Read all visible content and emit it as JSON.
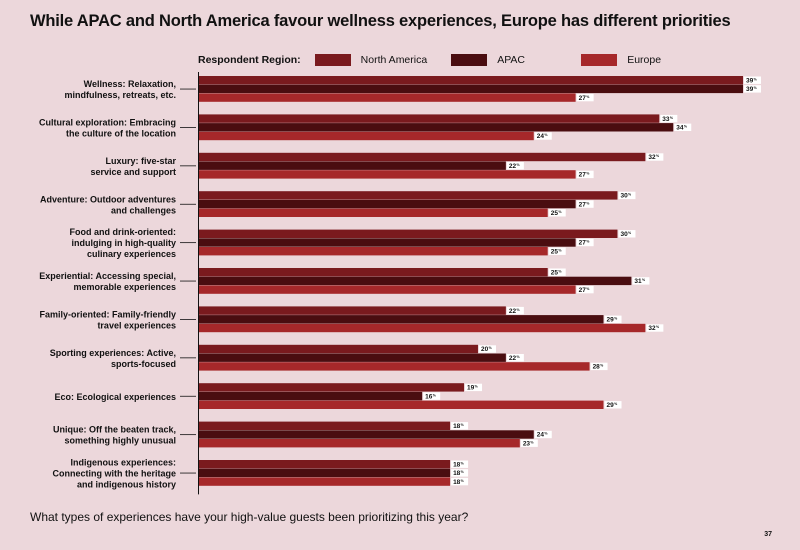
{
  "title": "While APAC and North America favour wellness experiences, Europe has different priorities",
  "legend": {
    "title": "Respondent Region:",
    "items": [
      {
        "name": "North America",
        "color": "#7a1a1e"
      },
      {
        "name": "APAC",
        "color": "#4a0d10"
      },
      {
        "name": "Europe",
        "color": "#a6282a"
      }
    ]
  },
  "question": "What types of experiences have your high-value guests been prioritizing this year?",
  "page_number": "37",
  "chart_data": {
    "type": "bar",
    "orientation": "horizontal",
    "categories": [
      [
        "Wellness: Relaxation,",
        "mindfulness, retreats, etc."
      ],
      [
        "Cultural exploration: Embracing",
        "the culture of the location"
      ],
      [
        "Luxury: five-star",
        "service and support"
      ],
      [
        "Adventure: Outdoor adventures",
        "and challenges"
      ],
      [
        "Food and drink-oriented:",
        "indulging in high-quality",
        "culinary experiences"
      ],
      [
        "Experiential: Accessing special,",
        "memorable experiences"
      ],
      [
        "Family-oriented: Family-friendly",
        "travel experiences"
      ],
      [
        "Sporting experiences: Active,",
        "sports-focused"
      ],
      [
        "Eco: Ecological experiences"
      ],
      [
        "Unique: Off the beaten track,",
        "something highly unusual"
      ],
      [
        "Indigenous experiences:",
        "Connecting with the heritage",
        "and indigenous history"
      ]
    ],
    "series": [
      {
        "name": "North America",
        "color": "#7a1a1e",
        "values": [
          39,
          33,
          32,
          30,
          30,
          25,
          22,
          20,
          19,
          18,
          18
        ]
      },
      {
        "name": "APAC",
        "color": "#4a0d10",
        "values": [
          39,
          34,
          22,
          27,
          27,
          31,
          29,
          22,
          16,
          24,
          18
        ]
      },
      {
        "name": "Europe",
        "color": "#a6282a",
        "values": [
          27,
          24,
          27,
          25,
          25,
          27,
          32,
          28,
          29,
          23,
          18
        ]
      }
    ],
    "value_suffix": "%",
    "xlim": [
      0,
      39
    ]
  }
}
